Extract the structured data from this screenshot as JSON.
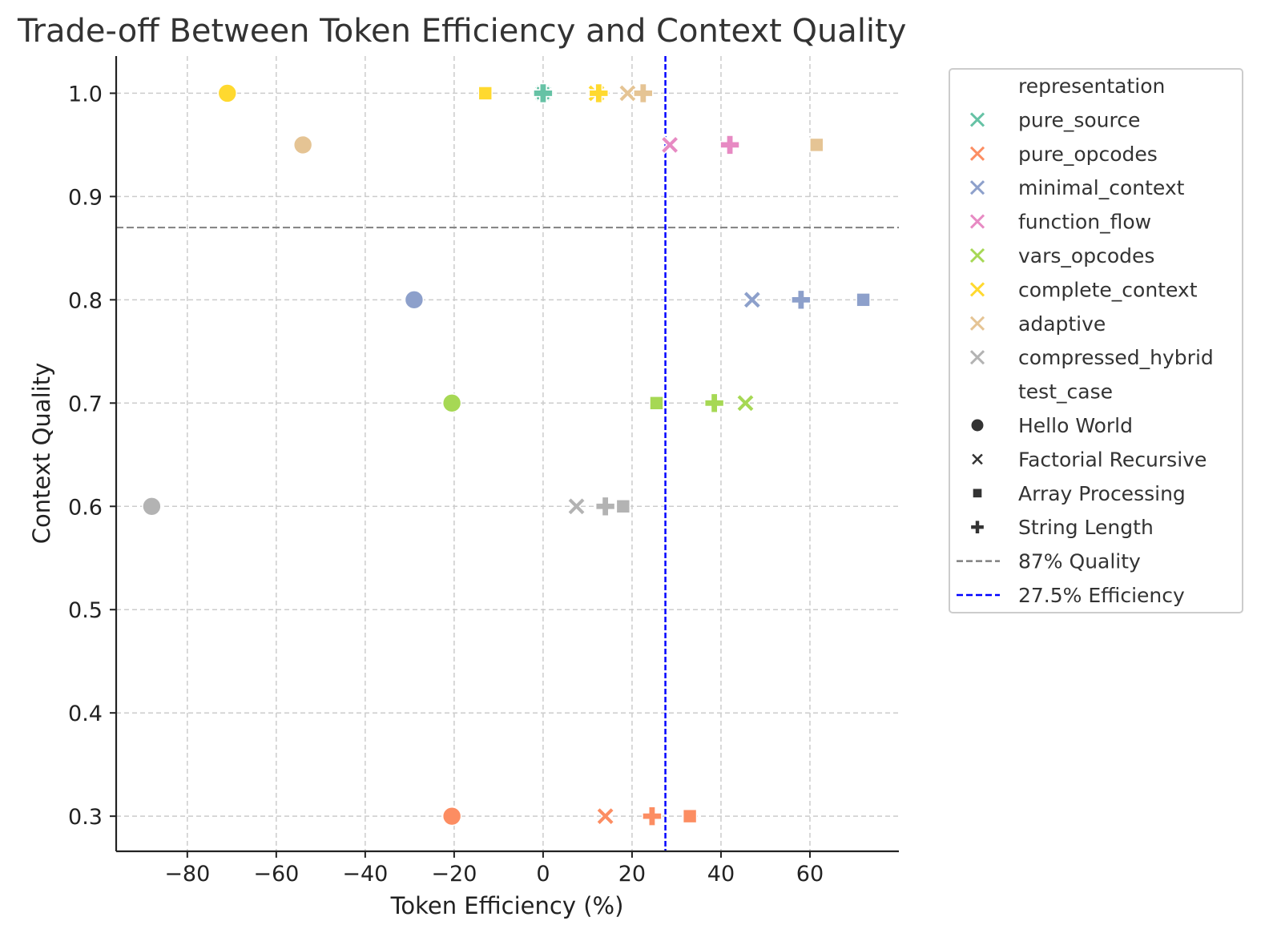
{
  "chart_data": {
    "type": "scatter",
    "title": "Trade-off Between Token Efficiency and Context Quality",
    "xlabel": "Token Efficiency (%)",
    "ylabel": "Context Quality",
    "xlim": [
      -96,
      80
    ],
    "ylim": [
      0.266,
      1.036
    ],
    "xticks": [
      -80,
      -60,
      -40,
      -20,
      0,
      20,
      40,
      60
    ],
    "xtick_labels": [
      "−80",
      "−60",
      "−40",
      "−20",
      "0",
      "20",
      "40",
      "60"
    ],
    "yticks": [
      0.3,
      0.4,
      0.5,
      0.6,
      0.7,
      0.8,
      0.9,
      1.0
    ],
    "ytick_labels": [
      "0.3",
      "0.4",
      "0.5",
      "0.6",
      "0.7",
      "0.8",
      "0.9",
      "1.0"
    ],
    "grid": true,
    "legend_position": "outside-right",
    "hue_title": "representation",
    "style_title": "test_case",
    "series": [
      {
        "name": "pure_source",
        "color": "#66c2a5",
        "points": [
          {
            "test_case": "Hello World",
            "x": 0,
            "y": 1.0
          },
          {
            "test_case": "Factorial Recursive",
            "x": 0,
            "y": 1.0
          },
          {
            "test_case": "Array Processing",
            "x": 0,
            "y": 1.0
          },
          {
            "test_case": "String Length",
            "x": 0,
            "y": 1.0
          }
        ]
      },
      {
        "name": "pure_opcodes",
        "color": "#fc8d62",
        "points": [
          {
            "test_case": "Hello World",
            "x": -20.5,
            "y": 0.3
          },
          {
            "test_case": "Factorial Recursive",
            "x": 14,
            "y": 0.3
          },
          {
            "test_case": "Array Processing",
            "x": 33,
            "y": 0.3
          },
          {
            "test_case": "String Length",
            "x": 24.5,
            "y": 0.3
          }
        ]
      },
      {
        "name": "minimal_context",
        "color": "#8da0cb",
        "points": [
          {
            "test_case": "Hello World",
            "x": -29,
            "y": 0.8
          },
          {
            "test_case": "Factorial Recursive",
            "x": 47,
            "y": 0.8
          },
          {
            "test_case": "Array Processing",
            "x": 72,
            "y": 0.8
          },
          {
            "test_case": "String Length",
            "x": 58,
            "y": 0.8
          }
        ]
      },
      {
        "name": "function_flow",
        "color": "#e78ac3",
        "points": [
          {
            "test_case": "Factorial Recursive",
            "x": 28.5,
            "y": 0.95
          },
          {
            "test_case": "String Length",
            "x": 42,
            "y": 0.95
          }
        ]
      },
      {
        "name": "vars_opcodes",
        "color": "#a6d854",
        "points": [
          {
            "test_case": "Hello World",
            "x": -20.5,
            "y": 0.7
          },
          {
            "test_case": "Factorial Recursive",
            "x": 45.5,
            "y": 0.7
          },
          {
            "test_case": "Array Processing",
            "x": 25.5,
            "y": 0.7
          },
          {
            "test_case": "String Length",
            "x": 38.5,
            "y": 0.7
          }
        ]
      },
      {
        "name": "complete_context",
        "color": "#ffd92f",
        "points": [
          {
            "test_case": "Hello World",
            "x": -71,
            "y": 1.0
          },
          {
            "test_case": "Factorial Recursive",
            "x": 12,
            "y": 1.0
          },
          {
            "test_case": "Array Processing",
            "x": -13,
            "y": 1.0
          },
          {
            "test_case": "String Length",
            "x": 12.5,
            "y": 1.0
          }
        ]
      },
      {
        "name": "adaptive",
        "color": "#e5c494",
        "points": [
          {
            "test_case": "Hello World",
            "x": -54,
            "y": 0.95
          },
          {
            "test_case": "Factorial Recursive",
            "x": 19,
            "y": 1.0
          },
          {
            "test_case": "Array Processing",
            "x": 61.5,
            "y": 0.95
          },
          {
            "test_case": "String Length",
            "x": 22.5,
            "y": 1.0
          }
        ]
      },
      {
        "name": "compressed_hybrid",
        "color": "#b3b3b3",
        "points": [
          {
            "test_case": "Hello World",
            "x": -88,
            "y": 0.6
          },
          {
            "test_case": "Factorial Recursive",
            "x": 7.5,
            "y": 0.6
          },
          {
            "test_case": "Array Processing",
            "x": 18,
            "y": 0.6
          },
          {
            "test_case": "String Length",
            "x": 14,
            "y": 0.6
          }
        ]
      }
    ],
    "test_cases": [
      {
        "name": "Hello World",
        "marker": "circle"
      },
      {
        "name": "Factorial Recursive",
        "marker": "x"
      },
      {
        "name": "Array Processing",
        "marker": "square"
      },
      {
        "name": "String Length",
        "marker": "plus"
      }
    ],
    "reference_lines": [
      {
        "orientation": "horizontal",
        "value": 0.87,
        "label": "87% Quality",
        "color": "#808080"
      },
      {
        "orientation": "vertical",
        "value": 27.5,
        "label": "27.5% Efficiency",
        "color": "#0000ff"
      }
    ]
  }
}
